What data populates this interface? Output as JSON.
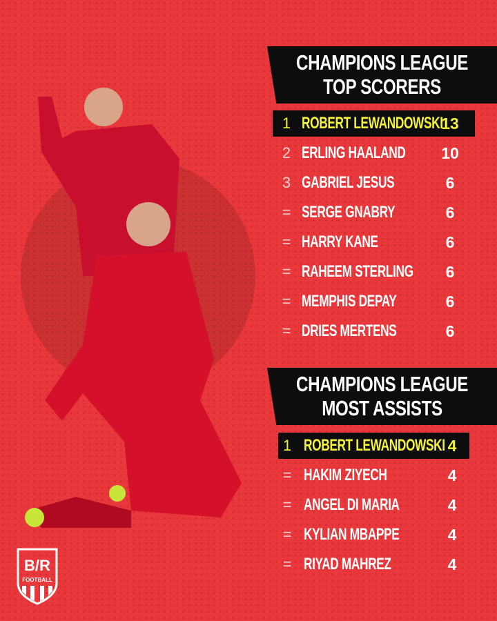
{
  "colors": {
    "background": "#e8383b",
    "panel": "#0d0d0d",
    "highlight": "#f4f23a",
    "text": "#ffffff"
  },
  "scorers": {
    "title_line1": "CHAMPIONS LEAGUE",
    "title_line2": "TOP SCORERS",
    "rows": [
      {
        "rank": "1",
        "name": "ROBERT LEWANDOWSKI",
        "value": "13"
      },
      {
        "rank": "2",
        "name": "ERLING HAALAND",
        "value": "10"
      },
      {
        "rank": "3",
        "name": "GABRIEL JESUS",
        "value": "6"
      },
      {
        "rank": "=",
        "name": "SERGE GNABRY",
        "value": "6"
      },
      {
        "rank": "=",
        "name": "HARRY KANE",
        "value": "6"
      },
      {
        "rank": "=",
        "name": "RAHEEM STERLING",
        "value": "6"
      },
      {
        "rank": "=",
        "name": "MEMPHIS DEPAY",
        "value": "6"
      },
      {
        "rank": "=",
        "name": "DRIES MERTENS",
        "value": "6"
      }
    ]
  },
  "assists": {
    "title_line1": "CHAMPIONS LEAGUE",
    "title_line2": "MOST ASSISTS",
    "rows": [
      {
        "rank": "1",
        "name": "ROBERT LEWANDOWSKI",
        "value": "4"
      },
      {
        "rank": "=",
        "name": "HAKIM ZIYECH",
        "value": "4"
      },
      {
        "rank": "=",
        "name": "ANGEL DI MARIA",
        "value": "4"
      },
      {
        "rank": "=",
        "name": "KYLIAN MBAPPE",
        "value": "4"
      },
      {
        "rank": "=",
        "name": "RIYAD MAHREZ",
        "value": "4"
      }
    ]
  },
  "logo": {
    "text": "B/R",
    "sub": "FOOTBALL"
  }
}
